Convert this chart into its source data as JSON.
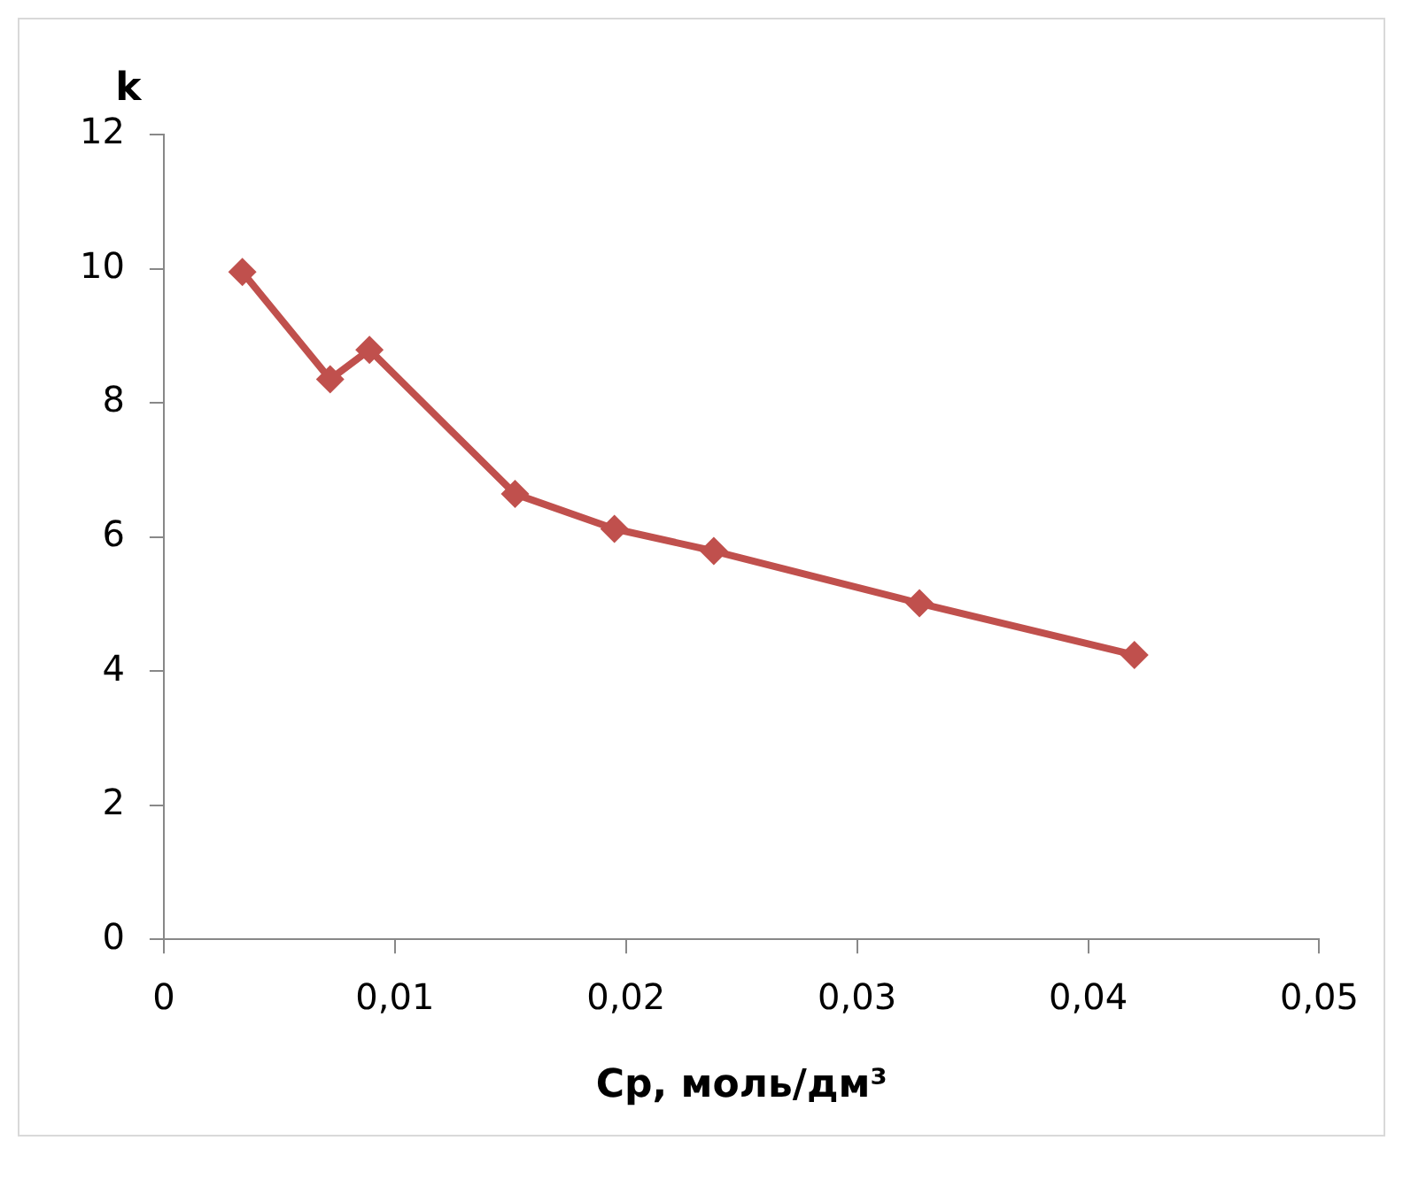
{
  "chart_data": {
    "type": "line",
    "xlabel": "Ср, моль/дм³",
    "ylabel": "k",
    "x": [
      0.0034,
      0.0072,
      0.0089,
      0.0152,
      0.0195,
      0.0238,
      0.0327,
      0.042
    ],
    "series": [
      {
        "color": "#c0504d",
        "values": [
          9.95,
          8.35,
          8.79,
          6.64,
          6.12,
          5.79,
          5.01,
          4.24
        ]
      }
    ],
    "xlim": [
      0,
      0.05
    ],
    "xticks": [
      0,
      {
        "value": 0.01,
        "label": "0,01"
      },
      {
        "value": 0.02,
        "label": "0,02"
      },
      {
        "value": 0.03,
        "label": "0,03"
      },
      {
        "value": 0.04,
        "label": "0,04"
      },
      {
        "value": 0.05,
        "label": "0,05"
      }
    ],
    "ylim": [
      0,
      12
    ],
    "yticks": [
      0,
      2,
      4,
      6,
      8,
      10,
      12
    ],
    "grid": false,
    "legend": false,
    "marker": "diamond",
    "line_style": "solid"
  }
}
